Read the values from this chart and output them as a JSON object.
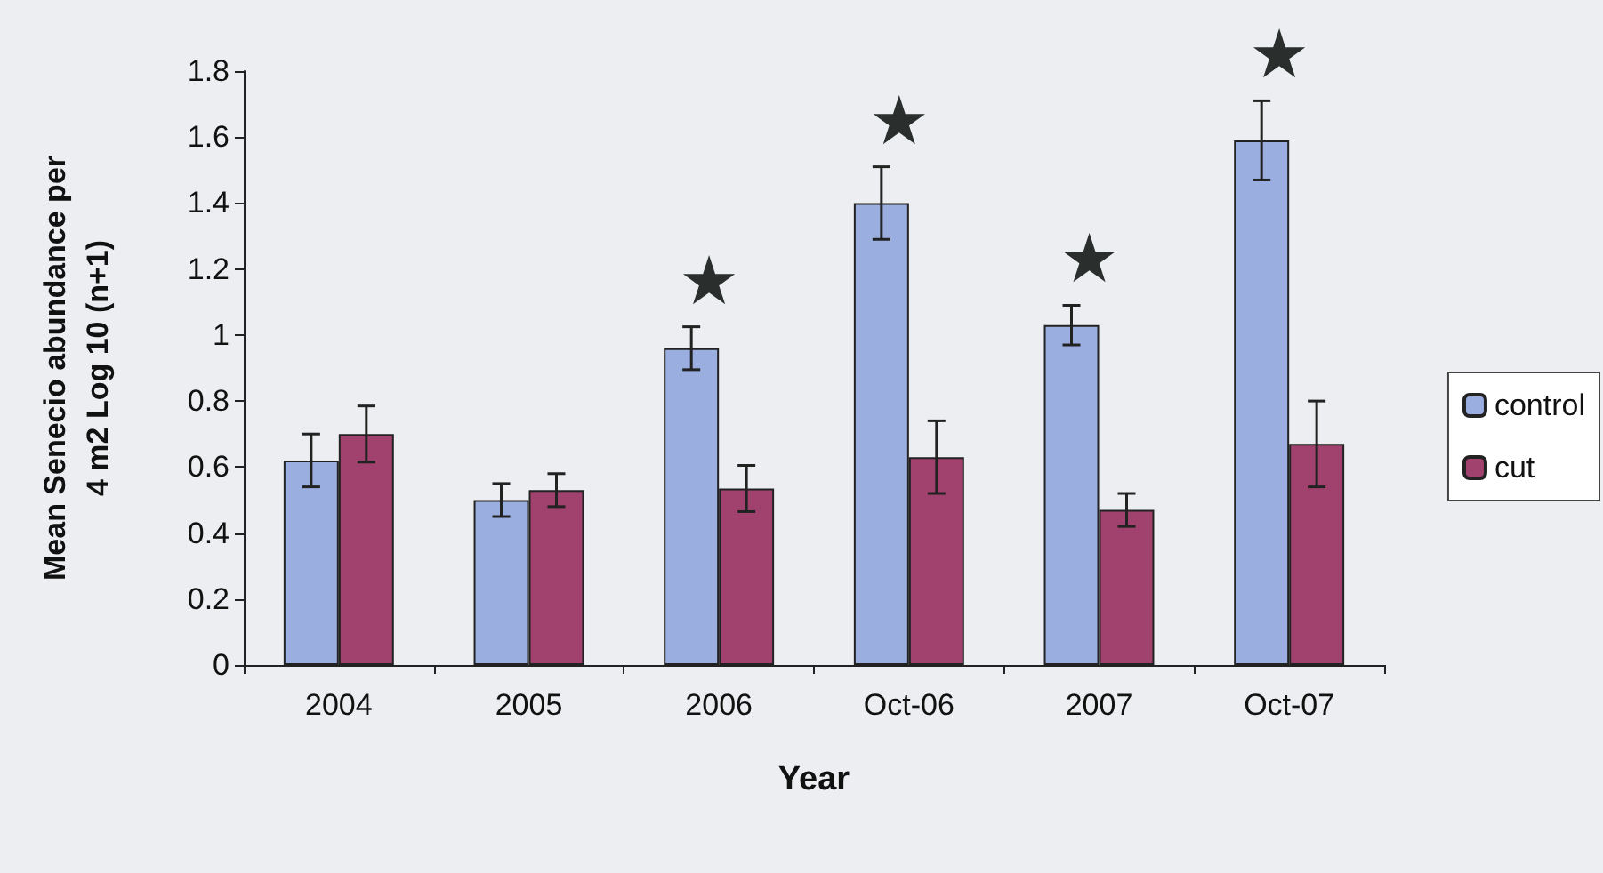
{
  "chart_data": {
    "type": "bar",
    "xlabel": "Year",
    "ylabel": "Mean Senecio abundance per\n4 m2 Log 10 (n+1)",
    "categories": [
      "2004",
      "2005",
      "2006",
      "Oct-06",
      "2007",
      "Oct-07"
    ],
    "series": [
      {
        "name": "control",
        "color": "#9aaee0",
        "values": [
          0.62,
          0.5,
          0.96,
          1.4,
          1.03,
          1.59
        ],
        "errors": [
          0.08,
          0.05,
          0.065,
          0.11,
          0.06,
          0.12
        ]
      },
      {
        "name": "cut",
        "color": "#a0416e",
        "values": [
          0.7,
          0.53,
          0.535,
          0.63,
          0.47,
          0.67
        ],
        "errors": [
          0.085,
          0.05,
          0.07,
          0.11,
          0.05,
          0.13
        ]
      }
    ],
    "ylim": [
      0,
      1.8
    ],
    "yticks": [
      0,
      0.2,
      0.4,
      0.6,
      0.8,
      1,
      1.2,
      1.4,
      1.6,
      1.8
    ],
    "grid": false,
    "legend": "right",
    "annotations": [
      {
        "text": "★",
        "x": "2006",
        "y": 0.96
      },
      {
        "text": "★",
        "x": "Oct-06",
        "y": 1.4
      },
      {
        "text": "★",
        "x": "2007",
        "y": 1.03
      },
      {
        "text": "★",
        "x": "Oct-07",
        "y": 1.59
      }
    ]
  }
}
